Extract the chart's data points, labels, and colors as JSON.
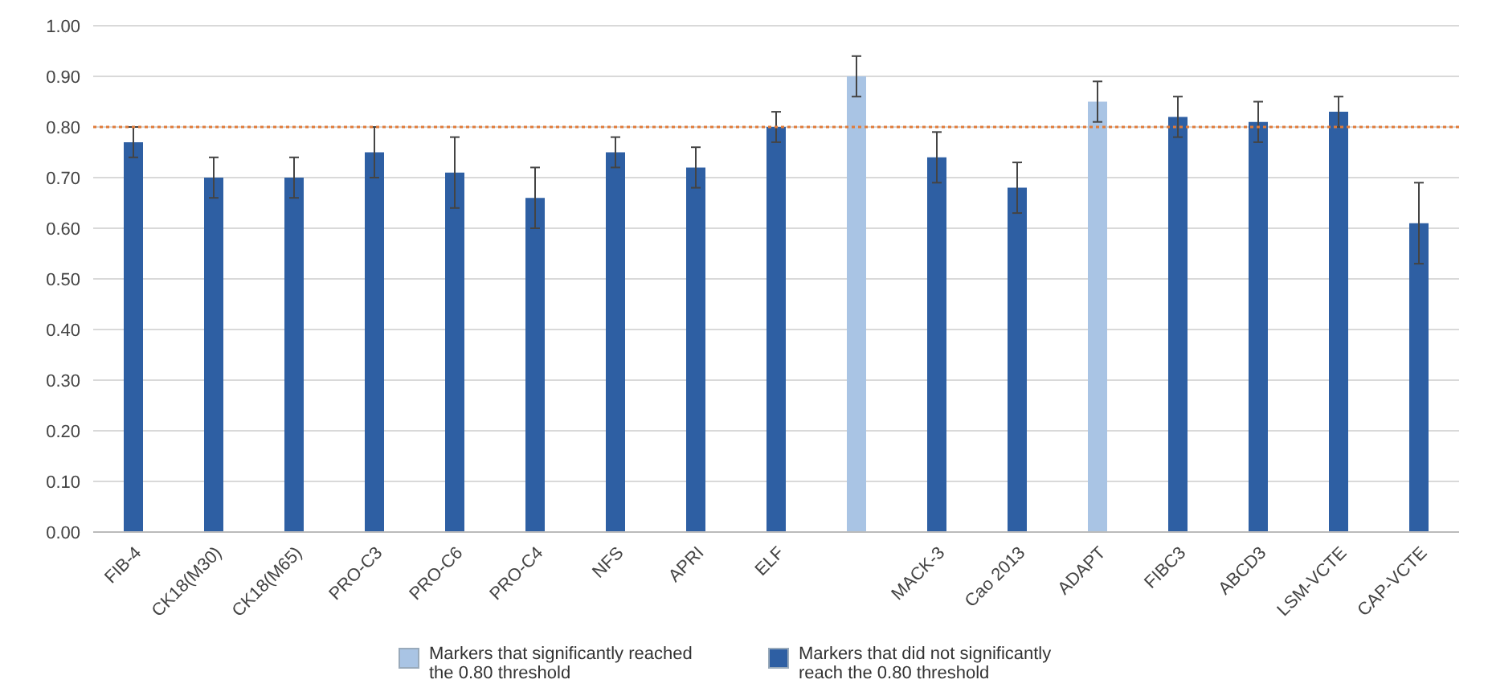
{
  "chart_data": {
    "type": "bar",
    "stacked": true,
    "categories": [
      "FIB-4",
      "CK18(M30)",
      "CK18(M65)",
      "PRO-C3",
      "PRO-C6",
      "PRO-C4",
      "NFS",
      "APRI",
      "ELF",
      null,
      "MACK-3",
      "Cao 2013",
      "ADAPT",
      "FIBC3",
      "ABCD3",
      "LSM-VCTE",
      "CAP-VCTE"
    ],
    "series": [
      {
        "name": "Markers that significantly reached the 0.80 threshold",
        "color": "#a9c4e4",
        "values": [
          null,
          null,
          null,
          null,
          null,
          null,
          null,
          null,
          null,
          0.9,
          null,
          null,
          0.85,
          null,
          null,
          null,
          null
        ],
        "errors": [
          null,
          null,
          null,
          null,
          null,
          null,
          null,
          null,
          null,
          0.04,
          null,
          null,
          0.04,
          null,
          null,
          null,
          null
        ]
      },
      {
        "name": "Markers that did not significantly reach the 0.80 threshold",
        "color": "#2e5fa3",
        "values": [
          0.77,
          0.7,
          0.7,
          0.75,
          0.71,
          0.66,
          0.75,
          0.72,
          0.8,
          null,
          0.74,
          0.68,
          null,
          0.82,
          0.81,
          0.83,
          0.61
        ],
        "errors": [
          0.03,
          0.04,
          0.04,
          0.05,
          0.07,
          0.06,
          0.03,
          0.04,
          0.03,
          null,
          0.05,
          0.05,
          null,
          0.04,
          0.04,
          0.03,
          0.08
        ]
      }
    ],
    "ylim": [
      0,
      1
    ],
    "yticks": [
      {
        "value": 0,
        "label": "0.00"
      },
      {
        "value": 0.1,
        "label": "0.10"
      },
      {
        "value": 0.2,
        "label": "0.20"
      },
      {
        "value": 0.3,
        "label": "0.30"
      },
      {
        "value": 0.4,
        "label": "0.40"
      },
      {
        "value": 0.5,
        "label": "0.50"
      },
      {
        "value": 0.6,
        "label": "0.60"
      },
      {
        "value": 0.7,
        "label": "0.70"
      },
      {
        "value": 0.8,
        "label": "0.80"
      },
      {
        "value": 0.9,
        "label": "0.90"
      },
      {
        "value": 1,
        "label": "1.00"
      }
    ],
    "grid": "y",
    "ref_lines": [
      {
        "axis": "y",
        "value": 0.8,
        "color": "#e07b39",
        "line_style": "dotted"
      }
    ],
    "legend": "bottom"
  }
}
